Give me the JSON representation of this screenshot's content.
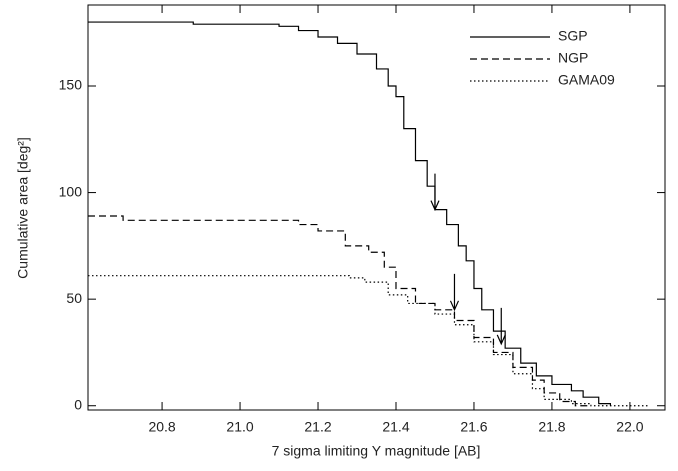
{
  "chart_data": {
    "type": "step",
    "xlabel": "7 sigma limiting Y magnitude [AB]",
    "ylabel": "Cumulative area [deg²]",
    "xlim": [
      20.61,
      22.09
    ],
    "ylim": [
      -2,
      188
    ],
    "xticks": [
      {
        "value": 20.8,
        "label": "20.8"
      },
      {
        "value": 21.0,
        "label": "21.0"
      },
      {
        "value": 21.2,
        "label": "21.2"
      },
      {
        "value": 21.4,
        "label": "21.4"
      },
      {
        "value": 21.6,
        "label": "21.6"
      },
      {
        "value": 21.8,
        "label": "21.8"
      },
      {
        "value": 22.0,
        "label": "22.0"
      }
    ],
    "yticks": [
      0,
      50,
      100,
      150
    ],
    "legend": "top-right",
    "series": [
      {
        "name": "SGP",
        "color": "#000000",
        "dash": "solid",
        "x": [
          20.61,
          20.88,
          21.1,
          21.15,
          21.2,
          21.25,
          21.3,
          21.35,
          21.38,
          21.4,
          21.42,
          21.45,
          21.48,
          21.5,
          21.53,
          21.56,
          21.58,
          21.6,
          21.62,
          21.65,
          21.68,
          21.72,
          21.76,
          21.8,
          21.85,
          21.88,
          21.92,
          21.95
        ],
        "values": [
          180,
          179,
          178,
          176,
          173,
          170,
          165,
          158,
          150,
          145,
          130,
          115,
          103,
          92,
          85,
          75,
          68,
          55,
          45,
          35,
          27,
          20,
          14,
          10,
          7,
          4,
          1,
          0
        ]
      },
      {
        "name": "NGP",
        "color": "#000000",
        "dash": "dashed",
        "x": [
          20.61,
          20.7,
          21.15,
          21.2,
          21.27,
          21.33,
          21.37,
          21.4,
          21.45,
          21.5,
          21.55,
          21.6,
          21.65,
          21.7,
          21.75,
          21.78,
          21.82,
          21.86,
          21.9
        ],
        "values": [
          89,
          87,
          85,
          82,
          75,
          72,
          65,
          55,
          48,
          45,
          40,
          32,
          25,
          18,
          12,
          6,
          2,
          0,
          0
        ]
      },
      {
        "name": "GAMA09",
        "color": "#000000",
        "dash": "dotted",
        "x": [
          20.61,
          21.28,
          21.32,
          21.38,
          21.43,
          21.5,
          21.55,
          21.6,
          21.65,
          21.7,
          21.75,
          21.78,
          21.85,
          21.9,
          22.05
        ],
        "values": [
          61,
          60,
          58,
          52,
          48,
          43,
          38,
          30,
          24,
          15,
          8,
          3,
          1,
          0,
          0
        ]
      }
    ],
    "arrows": [
      {
        "x": 21.5,
        "y": 92
      },
      {
        "x": 21.55,
        "y": 45
      },
      {
        "x": 21.67,
        "y": 29
      }
    ]
  }
}
